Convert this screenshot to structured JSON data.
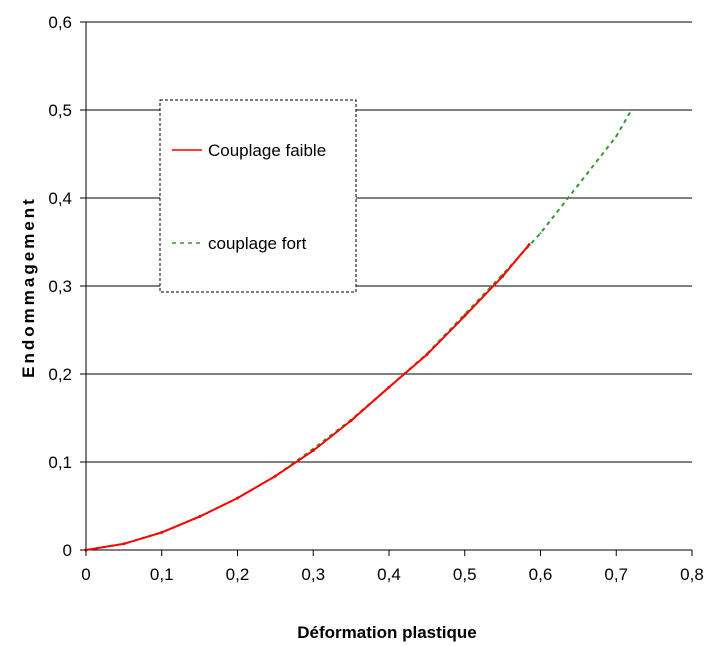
{
  "chart_data": {
    "type": "line",
    "title": "",
    "xlabel": "Déformation plastique",
    "ylabel": "Endommagement",
    "xlim": [
      0,
      0.8
    ],
    "ylim": [
      0,
      0.6
    ],
    "x_ticks": [
      "0",
      "0,1",
      "0,2",
      "0,3",
      "0,4",
      "0,5",
      "0,6",
      "0,7",
      "0,8"
    ],
    "y_ticks": [
      "0",
      "0,1",
      "0,2",
      "0,3",
      "0,4",
      "0,5",
      "0,6"
    ],
    "grid": "horizontal",
    "legend_position": "upper-left",
    "series": [
      {
        "name": "Couplage faible",
        "color": "#ff0000",
        "style": "solid",
        "x": [
          0.0,
          0.05,
          0.1,
          0.15,
          0.2,
          0.25,
          0.3,
          0.35,
          0.4,
          0.45,
          0.5,
          0.55,
          0.585
        ],
        "y": [
          0.0,
          0.007,
          0.02,
          0.038,
          0.059,
          0.084,
          0.113,
          0.147,
          0.185,
          0.222,
          0.266,
          0.311,
          0.347
        ]
      },
      {
        "name": "couplage fort",
        "color": "#339933",
        "style": "dashed",
        "x": [
          0.0,
          0.05,
          0.1,
          0.15,
          0.2,
          0.25,
          0.3,
          0.35,
          0.4,
          0.45,
          0.5,
          0.55,
          0.6,
          0.65,
          0.7,
          0.72
        ],
        "y": [
          0.0,
          0.007,
          0.02,
          0.038,
          0.059,
          0.084,
          0.115,
          0.148,
          0.185,
          0.223,
          0.268,
          0.313,
          0.36,
          0.415,
          0.47,
          0.5
        ]
      }
    ]
  }
}
